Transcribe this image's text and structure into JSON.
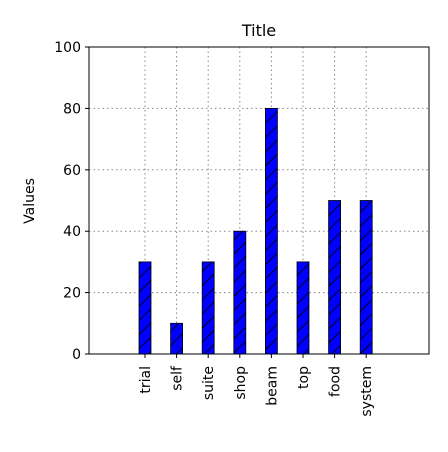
{
  "chart_data": {
    "type": "bar",
    "title": "Title",
    "xlabel": "",
    "ylabel": "Values",
    "categories": [
      "trial",
      "self",
      "suite",
      "shop",
      "beam",
      "top",
      "food",
      "system"
    ],
    "values": [
      30,
      10,
      30,
      40,
      80,
      30,
      50,
      50
    ],
    "ylim": [
      0,
      100
    ],
    "yticks": [
      0,
      20,
      40,
      60,
      80,
      100
    ],
    "grid": true,
    "bar_color": "#0000ff",
    "bar_pattern": "diagonal hatch",
    "grid_style": "dotted"
  }
}
